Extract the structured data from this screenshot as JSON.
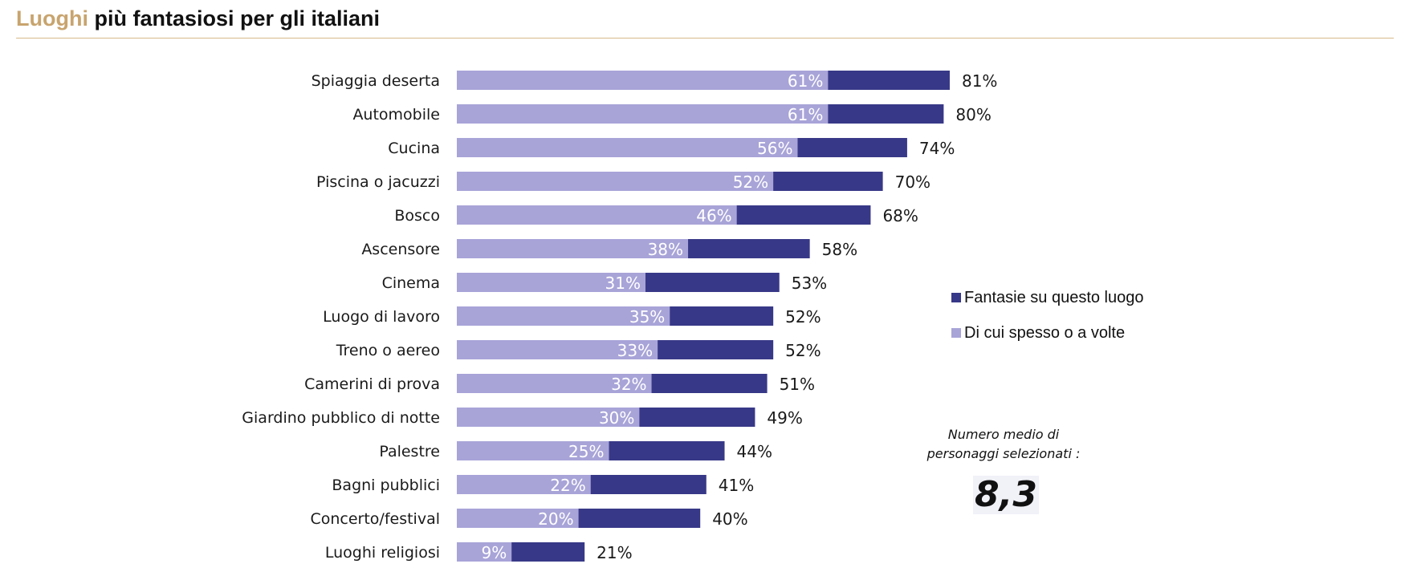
{
  "header": {
    "title_accent": "Luoghi",
    "title_rest": " più fantasiosi per gli italiani"
  },
  "colors": {
    "accent": "#c8a46e",
    "total": "#383888",
    "often": "#a8a4d8"
  },
  "chart_data": {
    "type": "bar",
    "orientation": "horizontal",
    "categories": [
      "Spiaggia deserta",
      "Automobile",
      "Cucina",
      "Piscina o jacuzzi",
      "Bosco",
      "Ascensore",
      "Cinema",
      "Luogo di lavoro",
      "Treno o aereo",
      "Camerini di prova",
      "Giardino pubblico di notte",
      "Palestre",
      "Bagni pubblici",
      "Concerto/festival",
      "Luoghi religiosi"
    ],
    "series": [
      {
        "name": "Fantasie su questo luogo",
        "values": [
          81,
          80,
          74,
          70,
          68,
          58,
          53,
          52,
          52,
          51,
          49,
          44,
          41,
          40,
          21
        ]
      },
      {
        "name": "Di cui spesso o a volte",
        "values": [
          61,
          61,
          56,
          52,
          46,
          38,
          31,
          35,
          33,
          32,
          30,
          25,
          22,
          20,
          9
        ]
      }
    ],
    "value_suffix": "%",
    "legend_position": "right",
    "grid": false
  },
  "legend": {
    "items": [
      {
        "label": "Fantasie su questo luogo"
      },
      {
        "label": "Di cui spesso o a volte"
      }
    ]
  },
  "note": {
    "line1": "Numero medio di",
    "line2": "personaggi selezionati :",
    "value": "8,3"
  }
}
